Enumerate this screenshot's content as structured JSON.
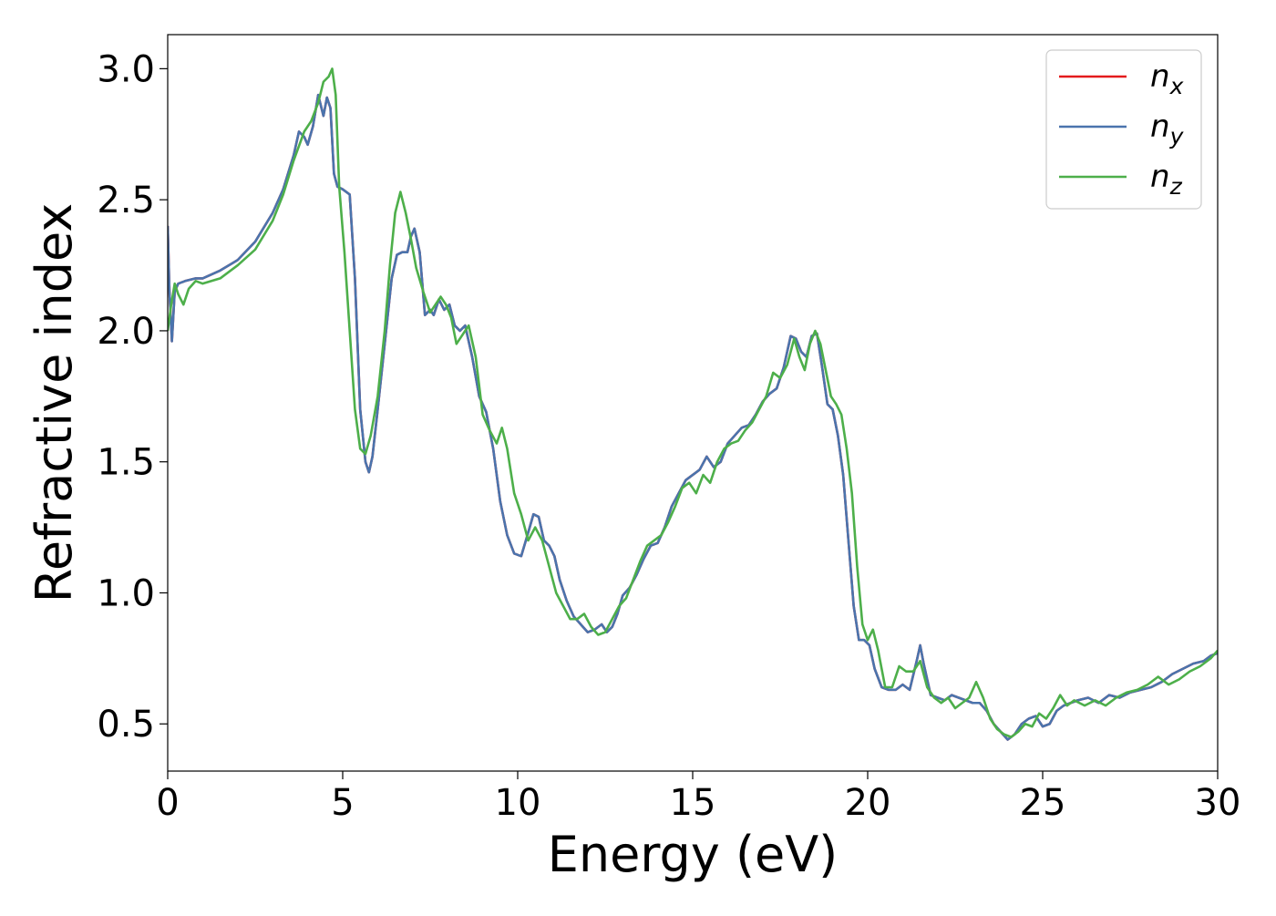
{
  "chart_data": {
    "type": "line",
    "title": "",
    "xlabel": "Energy (eV)",
    "ylabel": "Refractive index",
    "xlim": [
      0,
      30
    ],
    "ylim": [
      0.32,
      3.13
    ],
    "xticks": [
      0,
      5,
      10,
      15,
      20,
      25,
      30
    ],
    "yticks": [
      0.5,
      1.0,
      1.5,
      2.0,
      2.5,
      3.0
    ],
    "xtick_labels": [
      "0",
      "5",
      "10",
      "15",
      "20",
      "25",
      "30"
    ],
    "ytick_labels": [
      "0.5",
      "1.0",
      "1.5",
      "2.0",
      "2.5",
      "3.0"
    ],
    "grid": false,
    "legend_position": "top-right",
    "series": [
      {
        "name": "n_x",
        "legend_base": "n",
        "legend_sub": "x",
        "color": "#e41a1c",
        "x": [
          0,
          0.05,
          0.12,
          0.2,
          0.3,
          0.5,
          0.8,
          1.0,
          1.5,
          2.0,
          2.5,
          3.0,
          3.3,
          3.6,
          3.75,
          3.9,
          4.0,
          4.15,
          4.3,
          4.45,
          4.55,
          4.65,
          4.75,
          4.85,
          5.0,
          5.2,
          5.35,
          5.5,
          5.65,
          5.75,
          5.85,
          6.0,
          6.2,
          6.4,
          6.55,
          6.7,
          6.85,
          6.95,
          7.05,
          7.2,
          7.35,
          7.5,
          7.6,
          7.75,
          7.9,
          8.05,
          8.2,
          8.35,
          8.5,
          8.7,
          8.9,
          9.1,
          9.3,
          9.5,
          9.7,
          9.9,
          10.1,
          10.3,
          10.45,
          10.6,
          10.75,
          10.9,
          11.05,
          11.2,
          11.4,
          11.6,
          11.8,
          12.0,
          12.2,
          12.4,
          12.55,
          12.7,
          12.85,
          13.0,
          13.2,
          13.4,
          13.6,
          13.8,
          14.0,
          14.2,
          14.4,
          14.6,
          14.8,
          15.0,
          15.2,
          15.4,
          15.6,
          15.8,
          16.0,
          16.2,
          16.4,
          16.6,
          16.8,
          17.0,
          17.2,
          17.4,
          17.6,
          17.8,
          17.95,
          18.1,
          18.25,
          18.4,
          18.55,
          18.7,
          18.85,
          19.0,
          19.15,
          19.3,
          19.45,
          19.6,
          19.75,
          19.9,
          20.05,
          20.2,
          20.4,
          20.6,
          20.8,
          21.0,
          21.2,
          21.4,
          21.5,
          21.6,
          21.8,
          22.0,
          22.2,
          22.4,
          22.6,
          22.8,
          23.0,
          23.2,
          23.4,
          23.6,
          23.8,
          24.0,
          24.2,
          24.4,
          24.6,
          24.8,
          25.0,
          25.2,
          25.4,
          25.6,
          25.8,
          26.0,
          26.3,
          26.6,
          26.9,
          27.2,
          27.5,
          27.8,
          28.1,
          28.4,
          28.7,
          29.0,
          29.3,
          29.6,
          29.8,
          30.0
        ],
        "y": [
          2.4,
          2.15,
          1.96,
          2.15,
          2.18,
          2.19,
          2.2,
          2.2,
          2.23,
          2.27,
          2.34,
          2.45,
          2.54,
          2.67,
          2.76,
          2.74,
          2.71,
          2.78,
          2.9,
          2.82,
          2.89,
          2.85,
          2.6,
          2.55,
          2.54,
          2.52,
          2.2,
          1.7,
          1.5,
          1.46,
          1.52,
          1.7,
          1.95,
          2.2,
          2.29,
          2.3,
          2.3,
          2.36,
          2.39,
          2.3,
          2.06,
          2.08,
          2.06,
          2.12,
          2.08,
          2.1,
          2.02,
          2.0,
          2.02,
          1.9,
          1.75,
          1.69,
          1.55,
          1.35,
          1.22,
          1.15,
          1.14,
          1.23,
          1.3,
          1.29,
          1.2,
          1.18,
          1.14,
          1.05,
          0.97,
          0.91,
          0.88,
          0.85,
          0.86,
          0.88,
          0.85,
          0.87,
          0.92,
          0.99,
          1.02,
          1.07,
          1.13,
          1.18,
          1.19,
          1.25,
          1.33,
          1.38,
          1.43,
          1.45,
          1.47,
          1.52,
          1.48,
          1.5,
          1.57,
          1.6,
          1.63,
          1.64,
          1.68,
          1.73,
          1.76,
          1.78,
          1.86,
          1.98,
          1.97,
          1.92,
          1.9,
          1.98,
          1.99,
          1.86,
          1.72,
          1.7,
          1.6,
          1.45,
          1.2,
          0.95,
          0.82,
          0.82,
          0.8,
          0.71,
          0.64,
          0.63,
          0.63,
          0.65,
          0.63,
          0.74,
          0.8,
          0.73,
          0.61,
          0.6,
          0.59,
          0.61,
          0.6,
          0.59,
          0.58,
          0.58,
          0.55,
          0.5,
          0.47,
          0.44,
          0.46,
          0.5,
          0.52,
          0.53,
          0.49,
          0.5,
          0.55,
          0.57,
          0.58,
          0.59,
          0.6,
          0.58,
          0.61,
          0.6,
          0.62,
          0.63,
          0.64,
          0.66,
          0.69,
          0.71,
          0.73,
          0.74,
          0.76,
          0.77
        ]
      },
      {
        "name": "n_y",
        "legend_base": "n",
        "legend_sub": "y",
        "color": "#4a74ad",
        "x": [
          0,
          0.05,
          0.12,
          0.2,
          0.3,
          0.5,
          0.8,
          1.0,
          1.5,
          2.0,
          2.5,
          3.0,
          3.3,
          3.6,
          3.75,
          3.9,
          4.0,
          4.15,
          4.3,
          4.45,
          4.55,
          4.65,
          4.75,
          4.85,
          5.0,
          5.2,
          5.35,
          5.5,
          5.65,
          5.75,
          5.85,
          6.0,
          6.2,
          6.4,
          6.55,
          6.7,
          6.85,
          6.95,
          7.05,
          7.2,
          7.35,
          7.5,
          7.6,
          7.75,
          7.9,
          8.05,
          8.2,
          8.35,
          8.5,
          8.7,
          8.9,
          9.1,
          9.3,
          9.5,
          9.7,
          9.9,
          10.1,
          10.3,
          10.45,
          10.6,
          10.75,
          10.9,
          11.05,
          11.2,
          11.4,
          11.6,
          11.8,
          12.0,
          12.2,
          12.4,
          12.55,
          12.7,
          12.85,
          13.0,
          13.2,
          13.4,
          13.6,
          13.8,
          14.0,
          14.2,
          14.4,
          14.6,
          14.8,
          15.0,
          15.2,
          15.4,
          15.6,
          15.8,
          16.0,
          16.2,
          16.4,
          16.6,
          16.8,
          17.0,
          17.2,
          17.4,
          17.6,
          17.8,
          17.95,
          18.1,
          18.25,
          18.4,
          18.55,
          18.7,
          18.85,
          19.0,
          19.15,
          19.3,
          19.45,
          19.6,
          19.75,
          19.9,
          20.05,
          20.2,
          20.4,
          20.6,
          20.8,
          21.0,
          21.2,
          21.4,
          21.5,
          21.6,
          21.8,
          22.0,
          22.2,
          22.4,
          22.6,
          22.8,
          23.0,
          23.2,
          23.4,
          23.6,
          23.8,
          24.0,
          24.2,
          24.4,
          24.6,
          24.8,
          25.0,
          25.2,
          25.4,
          25.6,
          25.8,
          26.0,
          26.3,
          26.6,
          26.9,
          27.2,
          27.5,
          27.8,
          28.1,
          28.4,
          28.7,
          29.0,
          29.3,
          29.6,
          29.8,
          30.0
        ],
        "y": [
          2.4,
          2.15,
          1.96,
          2.15,
          2.18,
          2.19,
          2.2,
          2.2,
          2.23,
          2.27,
          2.34,
          2.45,
          2.54,
          2.67,
          2.76,
          2.74,
          2.71,
          2.78,
          2.9,
          2.82,
          2.89,
          2.85,
          2.6,
          2.55,
          2.54,
          2.52,
          2.2,
          1.7,
          1.5,
          1.46,
          1.52,
          1.7,
          1.95,
          2.2,
          2.29,
          2.3,
          2.3,
          2.36,
          2.39,
          2.3,
          2.06,
          2.08,
          2.06,
          2.12,
          2.08,
          2.1,
          2.02,
          2.0,
          2.02,
          1.9,
          1.75,
          1.69,
          1.55,
          1.35,
          1.22,
          1.15,
          1.14,
          1.23,
          1.3,
          1.29,
          1.2,
          1.18,
          1.14,
          1.05,
          0.97,
          0.91,
          0.88,
          0.85,
          0.86,
          0.88,
          0.85,
          0.87,
          0.92,
          0.99,
          1.02,
          1.07,
          1.13,
          1.18,
          1.19,
          1.25,
          1.33,
          1.38,
          1.43,
          1.45,
          1.47,
          1.52,
          1.48,
          1.5,
          1.57,
          1.6,
          1.63,
          1.64,
          1.68,
          1.73,
          1.76,
          1.78,
          1.86,
          1.98,
          1.97,
          1.92,
          1.9,
          1.98,
          1.99,
          1.86,
          1.72,
          1.7,
          1.6,
          1.45,
          1.2,
          0.95,
          0.82,
          0.82,
          0.8,
          0.71,
          0.64,
          0.63,
          0.63,
          0.65,
          0.63,
          0.74,
          0.8,
          0.73,
          0.61,
          0.6,
          0.59,
          0.61,
          0.6,
          0.59,
          0.58,
          0.58,
          0.55,
          0.5,
          0.47,
          0.44,
          0.46,
          0.5,
          0.52,
          0.53,
          0.49,
          0.5,
          0.55,
          0.57,
          0.58,
          0.59,
          0.6,
          0.58,
          0.61,
          0.6,
          0.62,
          0.63,
          0.64,
          0.66,
          0.69,
          0.71,
          0.73,
          0.74,
          0.76,
          0.77
        ]
      },
      {
        "name": "n_z",
        "legend_base": "n",
        "legend_sub": "z",
        "color": "#4daf4a",
        "x": [
          0,
          0.1,
          0.2,
          0.3,
          0.45,
          0.6,
          0.8,
          1.0,
          1.5,
          2.0,
          2.5,
          3.0,
          3.3,
          3.6,
          3.9,
          4.1,
          4.3,
          4.45,
          4.6,
          4.7,
          4.8,
          4.9,
          5.05,
          5.2,
          5.35,
          5.5,
          5.65,
          5.8,
          6.0,
          6.2,
          6.35,
          6.5,
          6.65,
          6.8,
          6.95,
          7.1,
          7.3,
          7.5,
          7.65,
          7.8,
          7.95,
          8.1,
          8.25,
          8.4,
          8.6,
          8.8,
          9.0,
          9.2,
          9.4,
          9.55,
          9.7,
          9.9,
          10.1,
          10.3,
          10.5,
          10.7,
          10.9,
          11.1,
          11.3,
          11.5,
          11.7,
          11.9,
          12.1,
          12.3,
          12.5,
          12.7,
          12.9,
          13.1,
          13.3,
          13.5,
          13.7,
          13.9,
          14.1,
          14.3,
          14.5,
          14.7,
          14.9,
          15.1,
          15.3,
          15.5,
          15.7,
          15.9,
          16.1,
          16.3,
          16.5,
          16.7,
          16.9,
          17.1,
          17.3,
          17.5,
          17.7,
          17.9,
          18.05,
          18.2,
          18.35,
          18.5,
          18.65,
          18.8,
          18.95,
          19.1,
          19.25,
          19.4,
          19.55,
          19.7,
          19.85,
          20.0,
          20.15,
          20.3,
          20.5,
          20.7,
          20.9,
          21.1,
          21.3,
          21.5,
          21.7,
          21.9,
          22.1,
          22.3,
          22.5,
          22.7,
          22.9,
          23.1,
          23.3,
          23.5,
          23.7,
          23.9,
          24.1,
          24.3,
          24.5,
          24.7,
          24.9,
          25.1,
          25.3,
          25.5,
          25.7,
          25.9,
          26.2,
          26.5,
          26.8,
          27.1,
          27.4,
          27.7,
          28.0,
          28.3,
          28.6,
          28.9,
          29.2,
          29.5,
          29.8,
          30.0
        ],
        "y": [
          2.0,
          2.1,
          2.18,
          2.14,
          2.1,
          2.16,
          2.19,
          2.18,
          2.2,
          2.25,
          2.31,
          2.42,
          2.52,
          2.65,
          2.76,
          2.8,
          2.87,
          2.95,
          2.97,
          3.0,
          2.9,
          2.55,
          2.3,
          2.0,
          1.7,
          1.55,
          1.53,
          1.6,
          1.75,
          2.0,
          2.25,
          2.45,
          2.53,
          2.45,
          2.35,
          2.24,
          2.15,
          2.07,
          2.1,
          2.13,
          2.1,
          2.05,
          1.95,
          1.98,
          2.02,
          1.9,
          1.68,
          1.62,
          1.57,
          1.63,
          1.55,
          1.38,
          1.3,
          1.2,
          1.25,
          1.2,
          1.1,
          1.0,
          0.95,
          0.9,
          0.9,
          0.92,
          0.87,
          0.84,
          0.85,
          0.9,
          0.95,
          0.98,
          1.05,
          1.12,
          1.18,
          1.2,
          1.22,
          1.27,
          1.33,
          1.4,
          1.42,
          1.38,
          1.45,
          1.42,
          1.5,
          1.55,
          1.57,
          1.58,
          1.62,
          1.65,
          1.7,
          1.75,
          1.84,
          1.82,
          1.87,
          1.97,
          1.9,
          1.85,
          1.95,
          2.0,
          1.95,
          1.85,
          1.75,
          1.72,
          1.68,
          1.55,
          1.38,
          1.1,
          0.88,
          0.82,
          0.86,
          0.78,
          0.64,
          0.64,
          0.72,
          0.7,
          0.7,
          0.74,
          0.64,
          0.6,
          0.58,
          0.6,
          0.56,
          0.58,
          0.6,
          0.66,
          0.6,
          0.52,
          0.48,
          0.46,
          0.45,
          0.47,
          0.5,
          0.49,
          0.54,
          0.52,
          0.56,
          0.61,
          0.57,
          0.59,
          0.57,
          0.59,
          0.57,
          0.6,
          0.62,
          0.63,
          0.65,
          0.68,
          0.65,
          0.67,
          0.7,
          0.72,
          0.75,
          0.78
        ]
      }
    ]
  }
}
